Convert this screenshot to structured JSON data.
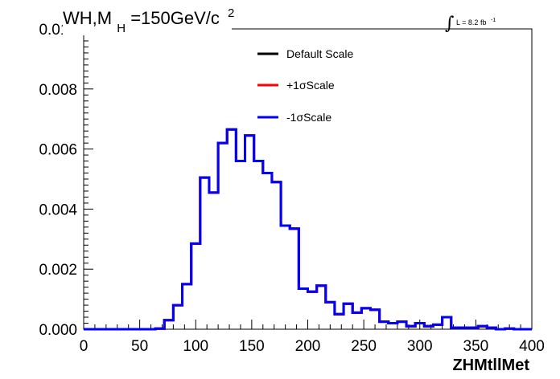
{
  "chart_data": {
    "type": "line",
    "title_parts": {
      "main": "WH,M",
      "sub": "H",
      "rest": "=150GeV/c",
      "sup": "2"
    },
    "lumi": {
      "integral": "∫",
      "text": "L = 8.2 fb",
      "sup": "-1"
    },
    "xlabel": "ZHMtllMet",
    "ylabel": "",
    "xlim": [
      0,
      400
    ],
    "ylim": [
      0,
      0.01
    ],
    "x_ticks": [
      "0",
      "50",
      "100",
      "150",
      "200",
      "250",
      "300",
      "350",
      "400"
    ],
    "y_ticks": [
      "0.000",
      "0.002",
      "0.004",
      "0.006",
      "0.008",
      "0.010"
    ],
    "bin_edges": [
      0,
      8,
      16,
      24,
      32,
      40,
      48,
      56,
      64,
      72,
      80,
      88,
      96,
      104,
      112,
      120,
      128,
      136,
      144,
      152,
      160,
      168,
      176,
      184,
      192,
      200,
      208,
      216,
      224,
      232,
      240,
      248,
      256,
      264,
      272,
      280,
      288,
      296,
      304,
      312,
      320,
      328,
      336,
      344,
      352,
      360,
      368,
      376,
      384,
      392,
      400
    ],
    "series": [
      {
        "name": "Default Scale",
        "color": "#000000",
        "values": [
          0,
          0,
          0,
          0,
          0,
          0,
          0,
          0,
          2e-05,
          0.0003,
          0.0008,
          0.0015,
          0.00285,
          0.00505,
          0.00455,
          0.0062,
          0.00665,
          0.0056,
          0.00645,
          0.0056,
          0.0052,
          0.0049,
          0.00345,
          0.00335,
          0.00135,
          0.00125,
          0.00145,
          0.0009,
          0.0005,
          0.00085,
          0.00055,
          0.0007,
          0.00065,
          0.00025,
          0.0002,
          0.00025,
          0.0001,
          0.0002,
          0.0001,
          0.00015,
          0.0004,
          5e-05,
          5e-05,
          5e-05,
          0.0001,
          5e-05,
          0,
          2e-05,
          0,
          0
        ]
      },
      {
        "name": "+1σScale",
        "color": "#ff0000",
        "values": [
          0,
          0,
          0,
          0,
          0,
          0,
          0,
          0,
          2e-05,
          0.0003,
          0.0008,
          0.0015,
          0.00285,
          0.00505,
          0.00455,
          0.0062,
          0.00665,
          0.0056,
          0.00645,
          0.0056,
          0.0052,
          0.0049,
          0.00345,
          0.00335,
          0.00135,
          0.00125,
          0.00145,
          0.0009,
          0.0005,
          0.00085,
          0.00055,
          0.0007,
          0.00065,
          0.00025,
          0.0002,
          0.00025,
          0.0001,
          0.0002,
          0.0001,
          0.00015,
          0.0004,
          5e-05,
          5e-05,
          5e-05,
          0.0001,
          5e-05,
          0,
          2e-05,
          0,
          0
        ]
      },
      {
        "name": "-1σScale",
        "color": "#0000ff",
        "values": [
          0,
          0,
          0,
          0,
          0,
          0,
          0,
          0,
          2e-05,
          0.0003,
          0.0008,
          0.0015,
          0.00285,
          0.00505,
          0.00455,
          0.0062,
          0.00665,
          0.0056,
          0.00645,
          0.0056,
          0.0052,
          0.0049,
          0.00345,
          0.00335,
          0.00135,
          0.00125,
          0.00145,
          0.0009,
          0.0005,
          0.00085,
          0.00055,
          0.0007,
          0.00065,
          0.00025,
          0.0002,
          0.00025,
          0.0001,
          0.0002,
          0.0001,
          0.00015,
          0.0004,
          5e-05,
          5e-05,
          5e-05,
          0.0001,
          5e-05,
          0,
          2e-05,
          0,
          0
        ]
      }
    ],
    "legend": {
      "position": "top-center"
    },
    "grid": false
  }
}
